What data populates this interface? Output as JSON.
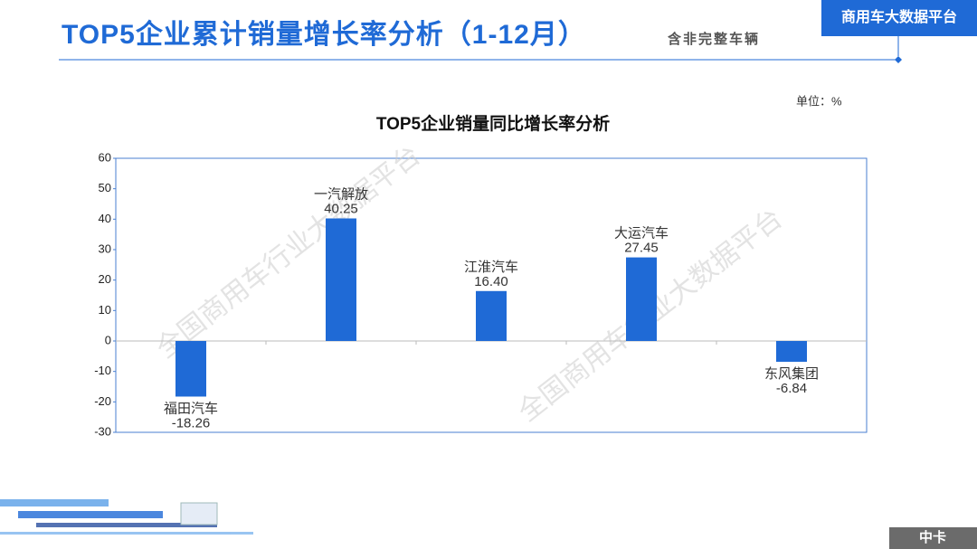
{
  "header": {
    "title": "TOP5企业累计销量增长率分析（1-12月）",
    "subtitle": "含非完整车辆",
    "badge": "商用车大数据平台"
  },
  "footer": {
    "tag": "中卡"
  },
  "watermarks": [
    "全国商用车行业大数据平台",
    "全国商用车行业大数据平台"
  ],
  "chart_data": {
    "type": "bar",
    "title": "TOP5企业销量同比增长率分析",
    "unit": "单位：%",
    "categories": [
      "福田汽车",
      "一汽解放",
      "江淮汽车",
      "大运汽车",
      "东风集团"
    ],
    "values": [
      -18.26,
      40.25,
      16.4,
      27.45,
      -6.84
    ],
    "value_labels": [
      "-18.26",
      "40.25",
      "16.40",
      "27.45",
      "-6.84"
    ],
    "color": "#1f6ad6",
    "ylim": [
      -30,
      60
    ],
    "yticks": [
      -30,
      -20,
      -10,
      0,
      10,
      20,
      30,
      40,
      50,
      60
    ]
  }
}
